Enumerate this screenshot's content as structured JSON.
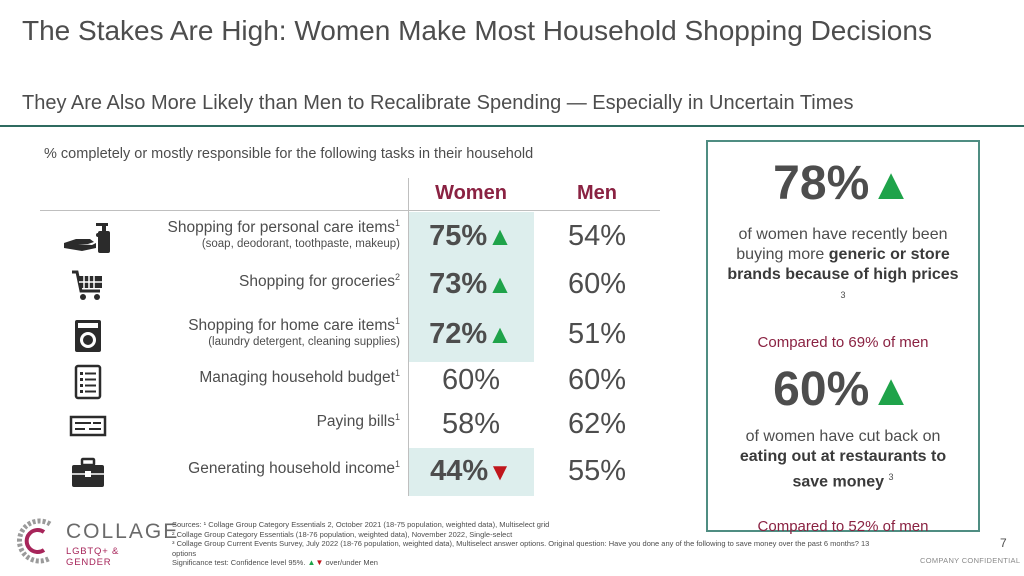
{
  "header": {
    "title": "The Stakes Are High: Women Make Most Household Shopping Decisions",
    "subtitle": "They Are Also More Likely than Men to Recalibrate Spending — Especially in Uncertain Times"
  },
  "table": {
    "question": "% completely or mostly responsible for the following tasks in their household",
    "col_women": "Women",
    "col_men": "Men",
    "rows": [
      {
        "label": "Shopping for personal care items",
        "sup": "1",
        "sublabel": "(soap, deodorant, toothpaste, makeup)",
        "women": "75%",
        "men": "54%",
        "icon": "hand-soap-icon",
        "sig": "up"
      },
      {
        "label": "Shopping for groceries",
        "sup": "2",
        "sublabel": "",
        "women": "73%",
        "men": "60%",
        "icon": "shopping-cart-icon",
        "sig": "up"
      },
      {
        "label": "Shopping for home care items",
        "sup": "1",
        "sublabel": "(laundry detergent, cleaning supplies)",
        "women": "72%",
        "men": "51%",
        "icon": "washing-machine-icon",
        "sig": "up"
      },
      {
        "label": "Managing household budget",
        "sup": "1",
        "sublabel": "",
        "women": "60%",
        "men": "60%",
        "icon": "checklist-icon",
        "sig": ""
      },
      {
        "label": "Paying bills",
        "sup": "1",
        "sublabel": "",
        "women": "58%",
        "men": "62%",
        "icon": "check-icon",
        "sig": ""
      },
      {
        "label": "Generating household income",
        "sup": "1",
        "sublabel": "",
        "women": "44%",
        "men": "55%",
        "icon": "briefcase-icon",
        "sig": "down"
      }
    ]
  },
  "stats": [
    {
      "value": "78%",
      "text_pre": "of women have recently been buying more",
      "text_bold": "generic or store brands because of high prices",
      "sup": "3",
      "compare": "Compared to 69% of men"
    },
    {
      "value": "60%",
      "text_pre": "of women have cut back on",
      "text_bold": "eating out at restaurants to save money",
      "sup": "3",
      "compare": "Compared to 52% of men"
    }
  ],
  "symbols": {
    "up": "▲",
    "down": "▼"
  },
  "colors": {
    "accent_women": "#8a2242",
    "up": "#1fa34a",
    "down": "#c0161c",
    "highlight": "#ddeeed",
    "border": "#4f8d82"
  },
  "logo": {
    "name": "COLLAGE",
    "tag": "LGBTQ+ & GENDER"
  },
  "sources": {
    "line1": "Sources: ¹ Collage Group Category Essentials 2, October 2021 (18-75 population, weighted data), Multiselect grid",
    "line2": "² Collage Group Category Essentials  (18-76 population, weighted data), November 2022, Single-select",
    "line3": "³ Collage Group Current Events Survey, July 2022 (18-76 population, weighted data), Multiselect answer options. Original question: Have you done any of the following to save money over the past 6 months? 13 options",
    "line4_pre": "Significance test: Confidence level 95%.",
    "line4_post": "over/under Men"
  },
  "footer": {
    "page": "7",
    "confidential": "COMPANY CONFIDENTIAL"
  }
}
